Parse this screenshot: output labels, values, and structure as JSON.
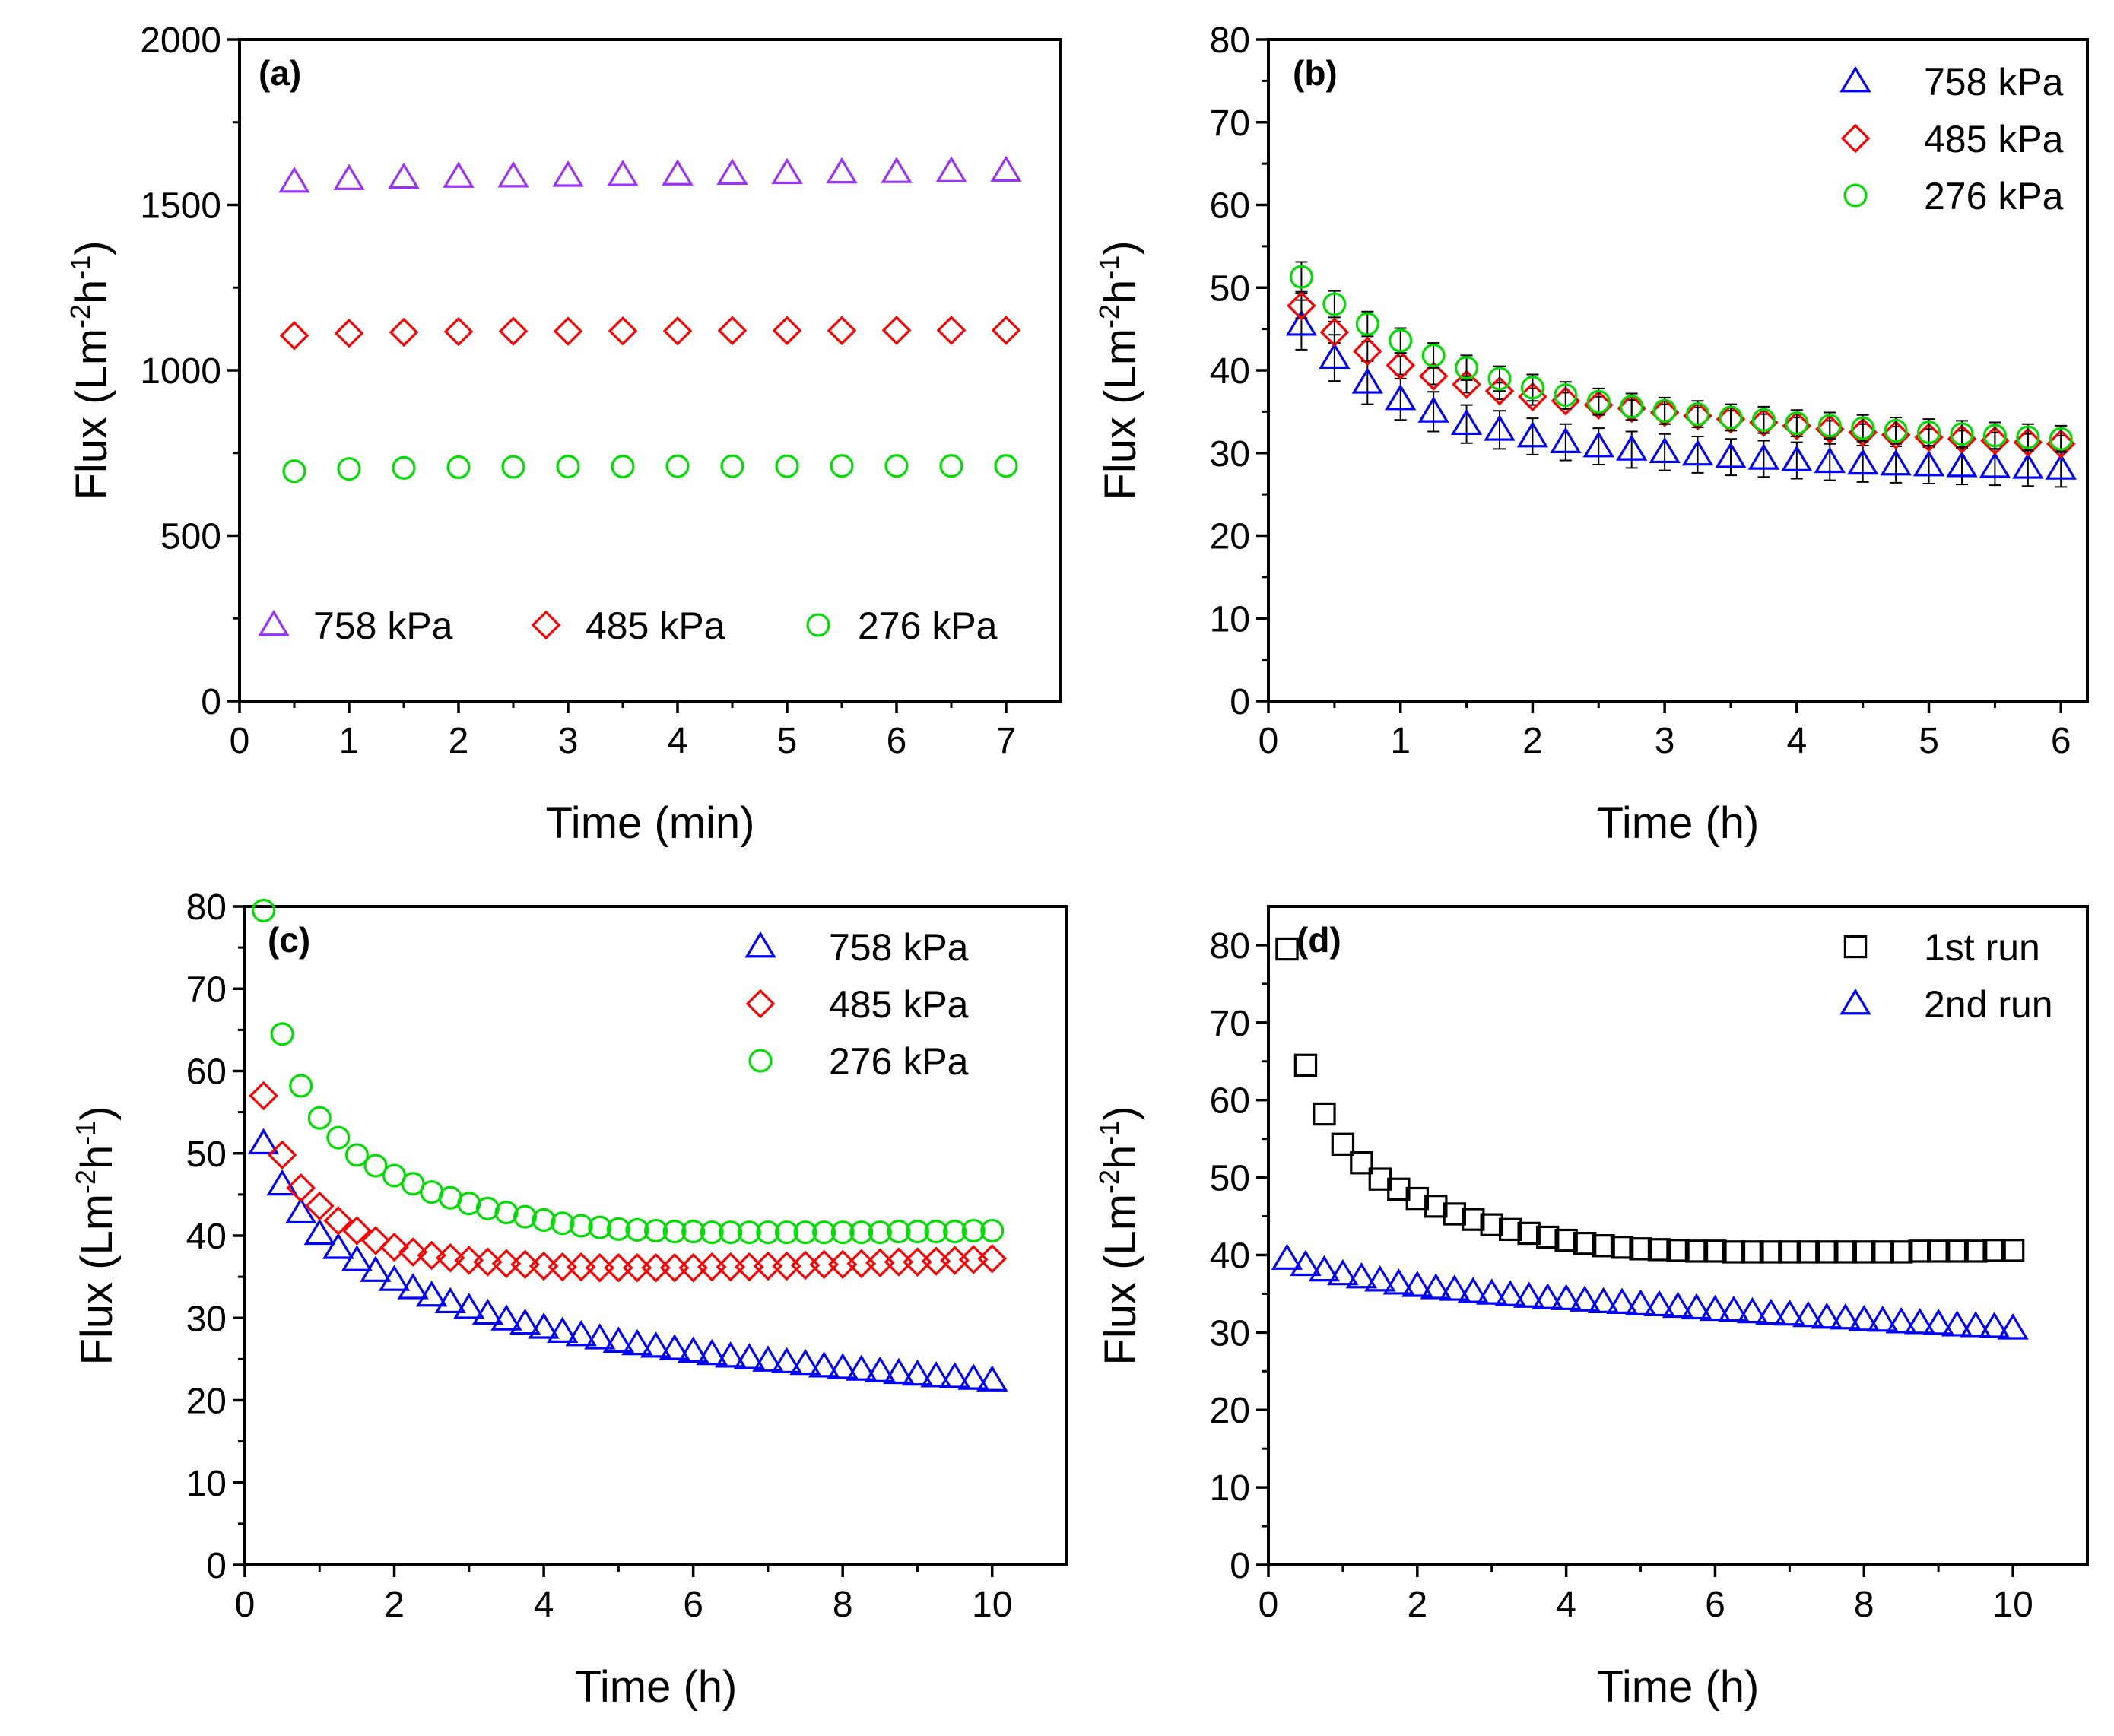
{
  "chart_data": [
    {
      "id": "a",
      "type": "scatter",
      "panel_label": "(a)",
      "xlabel": "Time (min)",
      "ylabel": "Flux (Lm",
      "ylabel_sup1": "-2",
      "ylabel_mid": "h",
      "ylabel_sup2": "-1",
      "ylabel_end": ")",
      "xlim": [
        0,
        7.5
      ],
      "ylim": [
        0,
        2000
      ],
      "xticks": [
        0,
        1,
        2,
        3,
        4,
        5,
        6,
        7
      ],
      "xtick_labels": [
        "0",
        "1",
        "2",
        "3",
        "4",
        "5",
        "6",
        "7"
      ],
      "yticks": [
        0,
        500,
        1000,
        1500,
        2000
      ],
      "ytick_labels": [
        "0",
        "500",
        "1000",
        "1500",
        "2000"
      ],
      "legend": "bottom",
      "series": [
        {
          "name": "758 kPa",
          "marker": "triangle",
          "color": "#9b30ff",
          "x": [
            0.5,
            1,
            1.5,
            2,
            2.5,
            3,
            3.5,
            4,
            4.5,
            5,
            5.5,
            6,
            6.5,
            7
          ],
          "y": [
            1570,
            1578,
            1582,
            1585,
            1586,
            1588,
            1590,
            1592,
            1594,
            1596,
            1598,
            1599,
            1601,
            1603
          ]
        },
        {
          "name": "485 kPa",
          "marker": "diamond",
          "color": "#ff0000",
          "x": [
            0.5,
            1,
            1.5,
            2,
            2.5,
            3,
            3.5,
            4,
            4.5,
            5,
            5.5,
            6,
            6.5,
            7
          ],
          "y": [
            1105,
            1112,
            1115,
            1117,
            1118,
            1118,
            1119,
            1119,
            1120,
            1120,
            1120,
            1121,
            1121,
            1121
          ]
        },
        {
          "name": "276 kPa",
          "marker": "circle",
          "color": "#00dd00",
          "x": [
            0.5,
            1,
            1.5,
            2,
            2.5,
            3,
            3.5,
            4,
            4.5,
            5,
            5.5,
            6,
            6.5,
            7
          ],
          "y": [
            695,
            702,
            705,
            707,
            708,
            709,
            709,
            710,
            710,
            710,
            711,
            711,
            711,
            711
          ]
        }
      ]
    },
    {
      "id": "b",
      "type": "scatter",
      "panel_label": "(b)",
      "xlabel": "Time (h)",
      "ylabel": "Flux (Lm",
      "ylabel_sup1": "-2",
      "ylabel_mid": "h",
      "ylabel_sup2": "-1",
      "ylabel_end": ")",
      "xlim": [
        0,
        6.2
      ],
      "ylim": [
        0,
        80
      ],
      "xticks": [
        0,
        1,
        2,
        3,
        4,
        5,
        6
      ],
      "xtick_labels": [
        "0",
        "1",
        "2",
        "3",
        "4",
        "5",
        "6"
      ],
      "yticks": [
        0,
        10,
        20,
        30,
        40,
        50,
        60,
        70,
        80
      ],
      "ytick_labels": [
        "0",
        "10",
        "20",
        "30",
        "40",
        "50",
        "60",
        "70",
        "80"
      ],
      "legend": "top-right",
      "error_bars": true,
      "series": [
        {
          "name": "758 kPa",
          "marker": "triangle",
          "color": "#0000ff",
          "x": [
            0.25,
            0.5,
            0.75,
            1,
            1.25,
            1.5,
            1.75,
            2,
            2.25,
            2.5,
            2.75,
            3,
            3.25,
            3.5,
            3.75,
            4,
            4.25,
            4.5,
            4.75,
            5,
            5.25,
            5.5,
            5.75,
            6
          ],
          "y": [
            45.5,
            41.5,
            38.5,
            36.5,
            35,
            33.5,
            32.8,
            32,
            31.3,
            30.8,
            30.4,
            30.1,
            29.8,
            29.5,
            29.3,
            29.1,
            28.9,
            28.7,
            28.6,
            28.5,
            28.4,
            28.3,
            28.2,
            28.1
          ],
          "err": [
            3,
            2.8,
            2.6,
            2.5,
            2.4,
            2.3,
            2.3,
            2.2,
            2.2,
            2.2,
            2.2,
            2.2,
            2.2,
            2.2,
            2.2,
            2.2,
            2.2,
            2.2,
            2.2,
            2.2,
            2.2,
            2.2,
            2.2,
            2.2
          ]
        },
        {
          "name": "485 kPa",
          "marker": "diamond",
          "color": "#ff0000",
          "x": [
            0.25,
            0.5,
            0.75,
            1,
            1.25,
            1.5,
            1.75,
            2,
            2.25,
            2.5,
            2.75,
            3,
            3.25,
            3.5,
            3.75,
            4,
            4.25,
            4.5,
            4.75,
            5,
            5.25,
            5.5,
            5.75,
            6
          ],
          "y": [
            47.8,
            44.6,
            42.3,
            40.6,
            39.3,
            38.3,
            37.5,
            36.8,
            36.3,
            35.8,
            35.4,
            34.9,
            34.5,
            34.1,
            33.7,
            33.3,
            32.9,
            32.5,
            32.2,
            31.9,
            31.7,
            31.5,
            31.3,
            31.1
          ],
          "err": [
            1.5,
            1.3,
            1.2,
            1.1,
            1.0,
            1.0,
            1.0,
            1.0,
            1.0,
            1.0,
            1.0,
            1.0,
            1.0,
            1.0,
            1.0,
            1.0,
            1.0,
            1.0,
            1.0,
            1.0,
            1.0,
            1.0,
            1.0,
            1.0
          ]
        },
        {
          "name": "276 kPa",
          "marker": "circle",
          "color": "#00dd00",
          "x": [
            0.25,
            0.5,
            0.75,
            1,
            1.25,
            1.5,
            1.75,
            2,
            2.25,
            2.5,
            2.75,
            3,
            3.25,
            3.5,
            3.75,
            4,
            4.25,
            4.5,
            4.75,
            5,
            5.25,
            5.5,
            5.75,
            6
          ],
          "y": [
            51.3,
            48,
            45.6,
            43.6,
            41.8,
            40.3,
            39,
            37.9,
            37,
            36.2,
            35.6,
            35.1,
            34.7,
            34.3,
            34,
            33.6,
            33.3,
            33,
            32.7,
            32.5,
            32.3,
            32.1,
            31.9,
            31.7
          ],
          "err": [
            1.8,
            1.6,
            1.5,
            1.5,
            1.5,
            1.5,
            1.5,
            1.6,
            1.6,
            1.6,
            1.6,
            1.6,
            1.6,
            1.6,
            1.6,
            1.6,
            1.6,
            1.6,
            1.6,
            1.6,
            1.6,
            1.6,
            1.6,
            1.6
          ]
        }
      ]
    },
    {
      "id": "c",
      "type": "scatter",
      "panel_label": "(c)",
      "xlabel": "Time (h)",
      "ylabel": "Flux (Lm",
      "ylabel_sup1": "-2",
      "ylabel_mid": "h",
      "ylabel_sup2": "-1",
      "ylabel_end": ")",
      "xlim": [
        0,
        11
      ],
      "ylim": [
        0,
        80
      ],
      "xticks": [
        0,
        2,
        4,
        6,
        8,
        10
      ],
      "xtick_labels": [
        "0",
        "2",
        "4",
        "6",
        "8",
        "10"
      ],
      "yticks": [
        0,
        10,
        20,
        30,
        40,
        50,
        60,
        70,
        80
      ],
      "ytick_labels": [
        "0",
        "10",
        "20",
        "30",
        "40",
        "50",
        "60",
        "70",
        "80"
      ],
      "legend": "top-right",
      "series": [
        {
          "name": "758 kPa",
          "marker": "triangle",
          "color": "#0000ff",
          "x": [
            0.25,
            0.5,
            0.75,
            1,
            1.25,
            1.5,
            1.75,
            2,
            2.25,
            2.5,
            2.75,
            3,
            3.25,
            3.5,
            3.75,
            4,
            4.25,
            4.5,
            4.75,
            5,
            5.25,
            5.5,
            5.75,
            6,
            6.25,
            6.5,
            6.75,
            7,
            7.25,
            7.5,
            7.75,
            8,
            8.25,
            8.5,
            8.75,
            9,
            9.25,
            9.5,
            9.75,
            10
          ],
          "y": [
            51.2,
            46.2,
            42.8,
            40.2,
            38.5,
            37,
            35.7,
            34.6,
            33.6,
            32.7,
            31.9,
            31.2,
            30.5,
            29.8,
            29.3,
            28.8,
            28.3,
            27.9,
            27.5,
            27.1,
            26.8,
            26.5,
            26.2,
            25.9,
            25.6,
            25.3,
            25.1,
            24.8,
            24.6,
            24.4,
            24.1,
            23.9,
            23.7,
            23.5,
            23.3,
            23.1,
            22.9,
            22.8,
            22.6,
            22.4
          ]
        },
        {
          "name": "485 kPa",
          "marker": "diamond",
          "color": "#ff0000",
          "x": [
            0.25,
            0.5,
            0.75,
            1,
            1.25,
            1.5,
            1.75,
            2,
            2.25,
            2.5,
            2.75,
            3,
            3.25,
            3.5,
            3.75,
            4,
            4.25,
            4.5,
            4.75,
            5,
            5.25,
            5.5,
            5.75,
            6,
            6.25,
            6.5,
            6.75,
            7,
            7.25,
            7.5,
            7.75,
            8,
            8.25,
            8.5,
            8.75,
            9,
            9.25,
            9.5,
            9.75,
            10
          ],
          "y": [
            57,
            49.8,
            45.8,
            43.6,
            41.8,
            40.6,
            39.4,
            38.6,
            38,
            37.6,
            37.3,
            37,
            36.8,
            36.6,
            36.5,
            36.3,
            36.2,
            36.2,
            36.1,
            36.1,
            36.1,
            36.1,
            36.1,
            36.1,
            36.2,
            36.2,
            36.2,
            36.3,
            36.3,
            36.4,
            36.5,
            36.5,
            36.6,
            36.7,
            36.8,
            36.8,
            36.9,
            37,
            37.1,
            37.2
          ]
        },
        {
          "name": "276 kPa",
          "marker": "circle",
          "color": "#00dd00",
          "x": [
            0.25,
            0.5,
            0.75,
            1,
            1.25,
            1.5,
            1.75,
            2,
            2.25,
            2.5,
            2.75,
            3,
            3.25,
            3.5,
            3.75,
            4,
            4.25,
            4.5,
            4.75,
            5,
            5.25,
            5.5,
            5.75,
            6,
            6.25,
            6.5,
            6.75,
            7,
            7.25,
            7.5,
            7.75,
            8,
            8.25,
            8.5,
            8.75,
            9,
            9.25,
            9.5,
            9.75,
            10
          ],
          "y": [
            79.5,
            64.5,
            58.2,
            54.3,
            51.9,
            49.8,
            48.5,
            47.3,
            46.3,
            45.3,
            44.6,
            43.9,
            43.3,
            42.8,
            42.3,
            41.9,
            41.5,
            41.2,
            41,
            40.8,
            40.7,
            40.6,
            40.5,
            40.5,
            40.4,
            40.4,
            40.4,
            40.4,
            40.4,
            40.4,
            40.4,
            40.4,
            40.4,
            40.4,
            40.5,
            40.5,
            40.5,
            40.5,
            40.6,
            40.6
          ]
        }
      ]
    },
    {
      "id": "d",
      "type": "scatter",
      "panel_label": "(d)",
      "xlabel": "Time (h)",
      "ylabel": "Flux (Lm",
      "ylabel_sup1": "-2",
      "ylabel_mid": "h",
      "ylabel_sup2": "-1",
      "ylabel_end": ")",
      "xlim": [
        0,
        11
      ],
      "ylim": [
        0,
        85
      ],
      "xticks": [
        0,
        2,
        4,
        6,
        8,
        10
      ],
      "xtick_labels": [
        "0",
        "2",
        "4",
        "6",
        "8",
        "10"
      ],
      "yticks": [
        0,
        10,
        20,
        30,
        40,
        50,
        60,
        70,
        80
      ],
      "ytick_labels": [
        "0",
        "10",
        "20",
        "30",
        "40",
        "50",
        "60",
        "70",
        "80"
      ],
      "legend": "top-right",
      "series": [
        {
          "name": "1st run",
          "marker": "square",
          "color": "#000000",
          "x": [
            0.25,
            0.5,
            0.75,
            1,
            1.25,
            1.5,
            1.75,
            2,
            2.25,
            2.5,
            2.75,
            3,
            3.25,
            3.5,
            3.75,
            4,
            4.25,
            4.5,
            4.75,
            5,
            5.25,
            5.5,
            5.75,
            6,
            6.25,
            6.5,
            6.75,
            7,
            7.25,
            7.5,
            7.75,
            8,
            8.25,
            8.5,
            8.75,
            9,
            9.25,
            9.5,
            9.75,
            10
          ],
          "y": [
            79.5,
            64.5,
            58.2,
            54.3,
            51.9,
            49.8,
            48.5,
            47.3,
            46.3,
            45.3,
            44.6,
            43.9,
            43.3,
            42.8,
            42.3,
            41.9,
            41.5,
            41.2,
            41,
            40.8,
            40.7,
            40.6,
            40.5,
            40.5,
            40.4,
            40.4,
            40.4,
            40.4,
            40.4,
            40.4,
            40.4,
            40.4,
            40.4,
            40.4,
            40.5,
            40.5,
            40.5,
            40.5,
            40.6,
            40.6
          ]
        },
        {
          "name": "2nd run",
          "marker": "triangle",
          "color": "#0000ff",
          "x": [
            0.25,
            0.5,
            0.75,
            1,
            1.25,
            1.5,
            1.75,
            2,
            2.25,
            2.5,
            2.75,
            3,
            3.25,
            3.5,
            3.75,
            4,
            4.25,
            4.5,
            4.75,
            5,
            5.25,
            5.5,
            5.75,
            6,
            6.25,
            6.5,
            6.75,
            7,
            7.25,
            7.5,
            7.75,
            8,
            8.25,
            8.5,
            8.75,
            9,
            9.25,
            9.5,
            9.75,
            10
          ],
          "y": [
            39.5,
            38.7,
            38,
            37.5,
            37.1,
            36.7,
            36.3,
            36,
            35.7,
            35.5,
            35.2,
            35,
            34.8,
            34.6,
            34.4,
            34.3,
            34.1,
            33.9,
            33.8,
            33.6,
            33.5,
            33.3,
            33.1,
            32.9,
            32.8,
            32.6,
            32.4,
            32.3,
            32.1,
            31.9,
            31.8,
            31.6,
            31.5,
            31.3,
            31.2,
            31.1,
            30.9,
            30.8,
            30.7,
            30.5
          ]
        }
      ]
    }
  ]
}
